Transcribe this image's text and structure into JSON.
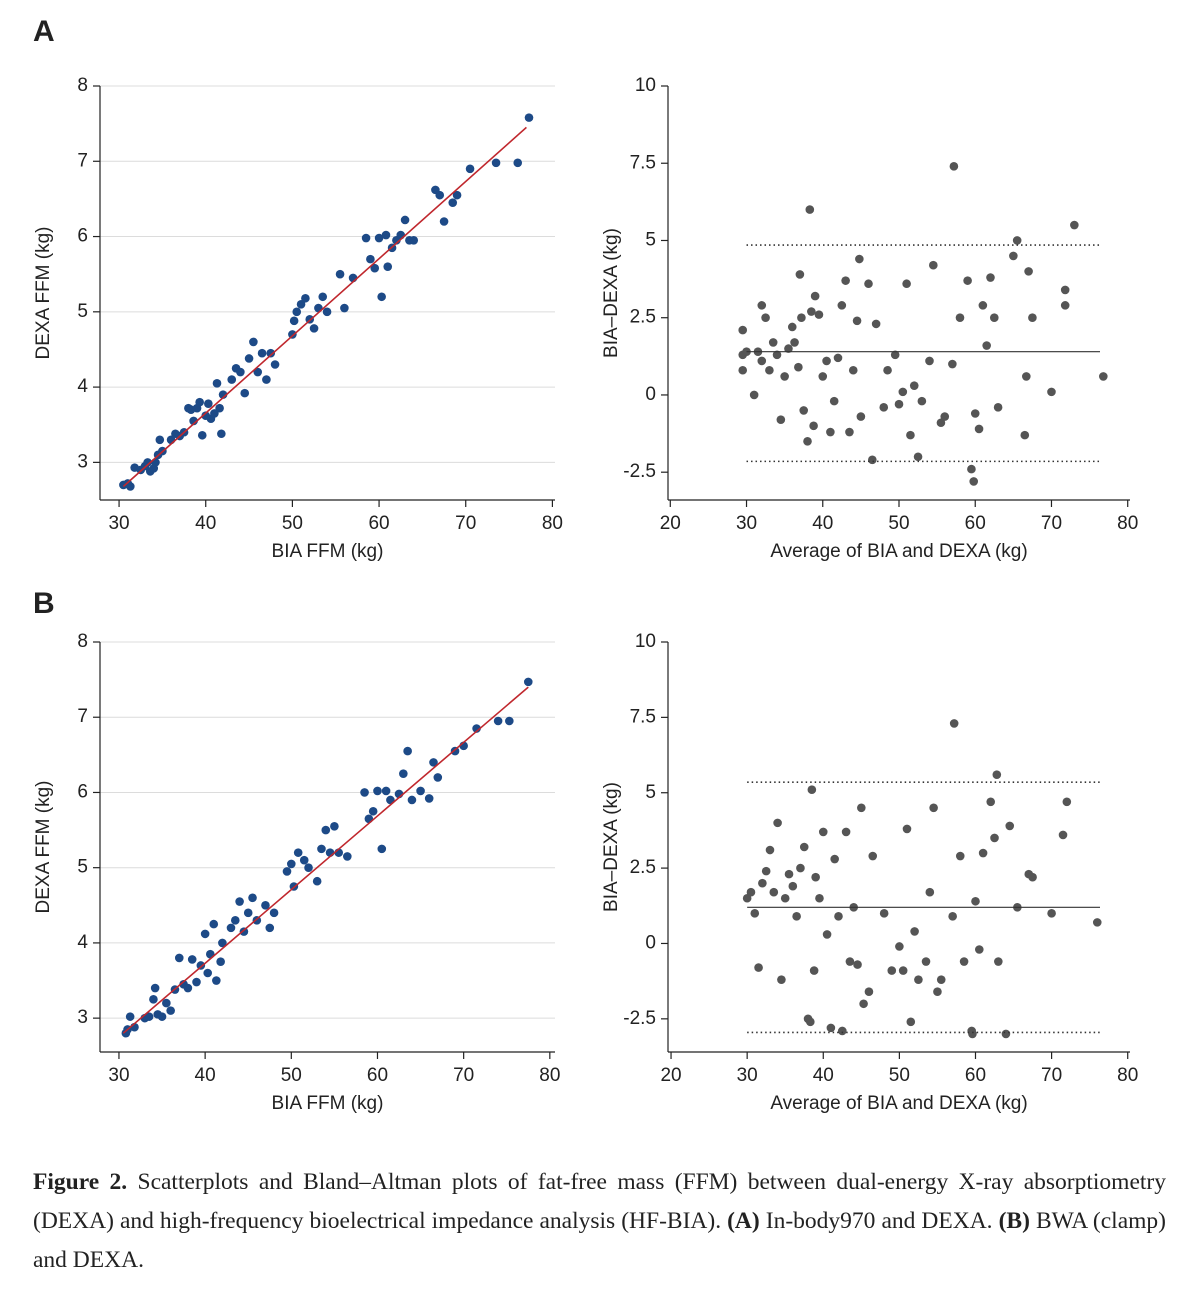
{
  "panels": [
    {
      "label": "A"
    },
    {
      "label": "B"
    }
  ],
  "chart_data": [
    {
      "type": "scatter",
      "xlabel": "BIA FFM (kg)",
      "ylabel": "DEXA FFM (kg)",
      "color": "#1d4a87",
      "grid": true,
      "xlim": [
        27.8,
        80.3
      ],
      "ylim": [
        2.5,
        8
      ],
      "xticks": [
        30,
        40,
        50,
        60,
        70,
        80
      ],
      "yticks": [
        3,
        4,
        5,
        6,
        7,
        8
      ],
      "x": [
        30.5,
        31,
        31.3,
        31.8,
        32.5,
        33,
        33.3,
        33.6,
        34,
        34.2,
        34.5,
        34.7,
        35,
        36,
        36.5,
        37,
        37.5,
        38,
        38.3,
        38.6,
        39,
        39.3,
        39.6,
        40,
        40.3,
        40.6,
        41,
        41.3,
        41.6,
        41.8,
        42,
        43,
        43.5,
        44,
        44.5,
        45,
        45.5,
        46,
        46.5,
        47,
        47.5,
        48,
        50,
        50.2,
        50.5,
        51,
        51.5,
        52,
        52.5,
        53,
        53.5,
        54,
        55.5,
        56,
        57,
        58.5,
        59,
        59.5,
        60,
        60.3,
        60.8,
        61,
        61.5,
        62,
        62.5,
        63,
        63.5,
        64,
        66.5,
        67,
        67.5,
        68.5,
        69,
        70.5,
        73.5,
        76,
        77.3
      ],
      "values": [
        2.7,
        2.72,
        2.68,
        2.93,
        2.9,
        2.95,
        3.0,
        2.88,
        2.92,
        3.0,
        3.1,
        3.3,
        3.15,
        3.3,
        3.38,
        3.35,
        3.4,
        3.72,
        3.7,
        3.55,
        3.72,
        3.8,
        3.36,
        3.62,
        3.78,
        3.58,
        3.65,
        4.05,
        3.72,
        3.38,
        3.9,
        4.1,
        4.25,
        4.2,
        3.92,
        4.38,
        4.6,
        4.2,
        4.45,
        4.1,
        4.45,
        4.3,
        4.7,
        4.88,
        5.0,
        5.1,
        5.18,
        4.9,
        4.78,
        5.05,
        5.2,
        5.0,
        5.5,
        5.05,
        5.45,
        5.98,
        5.7,
        5.58,
        5.98,
        5.2,
        6.02,
        5.6,
        5.85,
        5.95,
        6.02,
        6.22,
        5.95,
        5.95,
        6.62,
        6.55,
        6.2,
        6.45,
        6.55,
        6.9,
        6.98,
        6.98,
        7.58
      ],
      "fit_line": {
        "x": [
          30.5,
          77
        ],
        "y": [
          2.68,
          7.45
        ],
        "color": "#c0272d"
      }
    },
    {
      "type": "bland-altman",
      "xlabel": "Average of BIA and DEXA (kg)",
      "ylabel": "BIA–DEXA (kg)",
      "color": "#555555",
      "grid": false,
      "xlim": [
        19.7,
        80.3
      ],
      "ylim": [
        -3.4,
        10
      ],
      "xticks": [
        20,
        30,
        40,
        50,
        60,
        70,
        80
      ],
      "yticks": [
        -2.5,
        0,
        2.5,
        5,
        7.5,
        10
      ],
      "x": [
        29.5,
        29.5,
        29.5,
        30,
        31,
        31.5,
        32,
        32,
        32.5,
        33,
        33.5,
        34,
        34.5,
        35,
        35.5,
        36,
        36.3,
        36.8,
        37,
        37.2,
        37.5,
        38,
        38.3,
        38.5,
        38.8,
        39,
        39.5,
        40,
        40.5,
        41,
        41.5,
        42,
        42.5,
        43,
        43.5,
        44,
        44.5,
        44.8,
        45,
        46,
        46.5,
        47,
        48,
        48.5,
        49.5,
        50,
        50.5,
        51,
        51.5,
        52,
        52.5,
        53,
        54,
        54.5,
        55.5,
        56,
        57,
        57.2,
        58,
        59,
        59.5,
        59.8,
        60,
        60.5,
        61,
        61.5,
        62,
        62.5,
        63,
        65,
        65.5,
        66.5,
        66.7,
        67,
        67.5,
        70,
        71.8,
        71.8,
        73,
        76.8
      ],
      "values": [
        2.1,
        1.3,
        0.8,
        1.4,
        0,
        1.4,
        2.9,
        1.1,
        2.5,
        0.8,
        1.7,
        1.3,
        -0.8,
        0.6,
        1.5,
        2.2,
        1.7,
        0.9,
        3.9,
        2.5,
        -0.5,
        -1.5,
        6.0,
        2.7,
        -1,
        3.2,
        2.6,
        0.6,
        1.1,
        -1.2,
        -0.2,
        1.2,
        2.9,
        3.7,
        -1.2,
        0.8,
        2.4,
        4.4,
        -0.7,
        3.6,
        -2.1,
        2.3,
        -0.4,
        0.8,
        1.3,
        -0.3,
        0.1,
        3.6,
        -1.3,
        0.3,
        -2,
        -0.2,
        1.1,
        4.2,
        -0.9,
        -0.7,
        1.0,
        7.4,
        2.5,
        3.7,
        -2.4,
        -2.8,
        -0.6,
        -1.1,
        2.9,
        1.6,
        3.8,
        2.5,
        -0.4,
        4.5,
        5.0,
        -1.3,
        0.6,
        4.0,
        2.5,
        0.1,
        3.4,
        2.9,
        5.5,
        0.6
      ],
      "reference_lines": [
        {
          "value": 1.4,
          "style": "solid"
        },
        {
          "value": 4.85,
          "style": "dotted"
        },
        {
          "value": -2.15,
          "style": "dotted"
        }
      ]
    },
    {
      "type": "scatter",
      "xlabel": "BIA FFM (kg)",
      "ylabel": "DEXA FFM (kg)",
      "color": "#1d4a87",
      "grid": true,
      "xlim": [
        27.8,
        80.6
      ],
      "ylim": [
        2.55,
        8
      ],
      "xticks": [
        30,
        40,
        50,
        60,
        70,
        80
      ],
      "yticks": [
        3,
        4,
        5,
        6,
        7,
        8
      ],
      "x": [
        30.8,
        31,
        31.3,
        31.8,
        33,
        33.5,
        34,
        34.2,
        34.5,
        35,
        35.5,
        36,
        36.5,
        37,
        37.5,
        38,
        38.5,
        39,
        39.5,
        40,
        40.3,
        40.6,
        41,
        41.3,
        41.8,
        42,
        43,
        43.5,
        44,
        44.5,
        45,
        45.5,
        46,
        47,
        47.5,
        48,
        49.5,
        50,
        50.3,
        50.8,
        51.5,
        52,
        53,
        53.5,
        54,
        54.5,
        55,
        55.5,
        56.5,
        58.5,
        59,
        59.5,
        60,
        60.5,
        61,
        61.5,
        62.5,
        63,
        63.5,
        64,
        65,
        66,
        66.5,
        67,
        69,
        70,
        71.5,
        74,
        75.3,
        77.5
      ],
      "values": [
        2.8,
        2.85,
        3.02,
        2.88,
        3.0,
        3.02,
        3.25,
        3.4,
        3.05,
        3.02,
        3.2,
        3.1,
        3.38,
        3.8,
        3.45,
        3.4,
        3.78,
        3.48,
        3.7,
        4.12,
        3.6,
        3.85,
        4.25,
        3.5,
        3.75,
        4.0,
        4.2,
        4.3,
        4.55,
        4.15,
        4.4,
        4.6,
        4.3,
        4.5,
        4.2,
        4.4,
        4.95,
        5.05,
        4.75,
        5.2,
        5.1,
        5.0,
        4.82,
        5.25,
        5.5,
        5.2,
        5.55,
        5.2,
        5.15,
        6.0,
        5.65,
        5.75,
        6.02,
        5.25,
        6.02,
        5.9,
        5.98,
        6.25,
        6.55,
        5.9,
        6.02,
        5.92,
        6.4,
        6.2,
        6.55,
        6.62,
        6.85,
        6.95,
        6.95,
        7.47
      ],
      "fit_line": {
        "x": [
          30.5,
          77.5
        ],
        "y": [
          2.8,
          7.4
        ],
        "color": "#c0272d"
      }
    },
    {
      "type": "bland-altman",
      "xlabel": "Average of BIA and DEXA (kg)",
      "ylabel": "BIA–DEXA (kg)",
      "color": "#555555",
      "grid": false,
      "xlim": [
        19.6,
        80.3
      ],
      "ylim": [
        -3.6,
        10
      ],
      "xticks": [
        20,
        30,
        40,
        50,
        60,
        70,
        80
      ],
      "yticks": [
        -2.5,
        0,
        2.5,
        5,
        7.5,
        10
      ],
      "x": [
        30,
        30.5,
        31,
        31.5,
        32,
        32.5,
        33,
        33.5,
        34,
        34.5,
        35,
        35.5,
        36,
        36.5,
        37,
        37.5,
        38,
        38.3,
        38.5,
        38.8,
        39,
        39.5,
        40,
        40.5,
        41,
        41.5,
        42,
        42.5,
        43,
        43.5,
        44,
        44.5,
        45,
        45.3,
        46,
        46.5,
        48,
        49,
        50,
        50.5,
        51,
        51.5,
        52,
        52.5,
        53.5,
        54,
        54.5,
        55,
        55.5,
        57,
        57.2,
        58,
        58.5,
        59.5,
        59.6,
        60,
        60.5,
        61,
        62,
        62.5,
        62.8,
        63,
        64,
        64.5,
        65.5,
        67,
        67.5,
        70,
        71.5,
        72,
        76
      ],
      "values": [
        1.5,
        1.7,
        1.0,
        -0.8,
        2.0,
        2.4,
        3.1,
        1.7,
        4.0,
        -1.2,
        1.5,
        2.3,
        1.9,
        0.9,
        2.5,
        3.2,
        -2.5,
        -2.6,
        5.1,
        -0.9,
        2.2,
        1.5,
        3.7,
        0.3,
        -2.8,
        2.8,
        0.9,
        -2.9,
        3.7,
        -0.6,
        1.2,
        -0.7,
        4.5,
        -2.0,
        -1.6,
        2.9,
        1.0,
        -0.9,
        -0.1,
        -0.9,
        3.8,
        -2.6,
        0.4,
        -1.2,
        -0.6,
        1.7,
        4.5,
        -1.6,
        -1.2,
        0.9,
        7.3,
        2.9,
        -0.6,
        -2.9,
        -3.0,
        1.4,
        -0.2,
        3.0,
        4.7,
        3.5,
        5.6,
        -0.6,
        -3.0,
        3.9,
        1.2,
        2.3,
        2.2,
        1.0,
        3.6,
        4.7,
        0.7
      ],
      "reference_lines": [
        {
          "value": 1.2,
          "style": "solid"
        },
        {
          "value": 5.35,
          "style": "dotted"
        },
        {
          "value": -2.95,
          "style": "dotted"
        }
      ]
    }
  ],
  "caption": [
    {
      "text": "Figure 2.",
      "bold": true
    },
    {
      "text": " Scatterplots and Bland–Altman plots of fat-free mass (FFM) between dual-energy X-ray absorptiometry (DEXA) and high-frequency bioelectrical impedance analysis (HF-BIA). ",
      "bold": false
    },
    {
      "text": "(A)",
      "bold": true
    },
    {
      "text": " In-body970 and DEXA. ",
      "bold": false
    },
    {
      "text": "(B)",
      "bold": true
    },
    {
      "text": " BWA (clamp) and DEXA.",
      "bold": false
    }
  ]
}
